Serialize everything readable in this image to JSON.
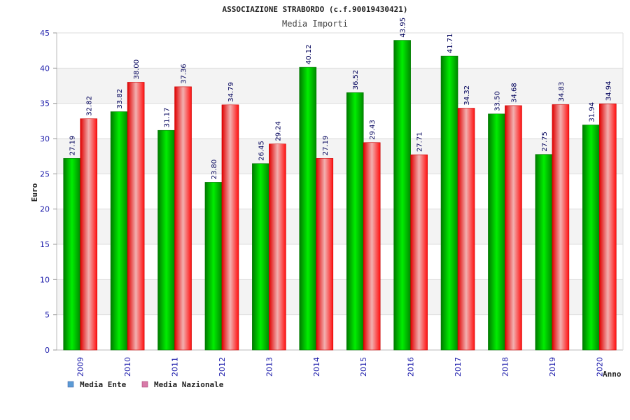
{
  "chart_data": {
    "type": "bar",
    "title": "ASSOCIAZIONE STRABORDO (c.f.90019430421)",
    "subtitle": "Media Importi",
    "xlabel": "Anno",
    "ylabel": "Euro",
    "ylim": [
      0,
      45
    ],
    "yticks": [
      0,
      5,
      10,
      15,
      20,
      25,
      30,
      35,
      40,
      45
    ],
    "grid": true,
    "legend_position": "bottom-left",
    "categories": [
      "2009",
      "2010",
      "2011",
      "2012",
      "2013",
      "2014",
      "2015",
      "2016",
      "2017",
      "2018",
      "2019",
      "2020"
    ],
    "series": [
      {
        "name": "Media Ente",
        "color": "#00cc00",
        "legend_color": "#5b9bd5",
        "values": [
          27.19,
          33.82,
          31.17,
          23.8,
          26.45,
          40.12,
          36.52,
          43.95,
          41.71,
          33.5,
          27.75,
          31.94
        ],
        "labels": [
          "27.19",
          "33.82",
          "31.17",
          "23.80",
          "26.45",
          "40.12",
          "36.52",
          "43.95",
          "41.71",
          "33.50",
          "27.75",
          "31.94"
        ]
      },
      {
        "name": "Media Nazionale",
        "color": "#ff2020",
        "legend_color": "#d87aa8",
        "values": [
          32.82,
          38.0,
          37.36,
          34.79,
          29.24,
          27.19,
          29.43,
          27.71,
          34.32,
          34.68,
          34.83,
          34.94
        ],
        "labels": [
          "32.82",
          "38.00",
          "37.36",
          "34.79",
          "29.24",
          "27.19",
          "29.43",
          "27.71",
          "34.32",
          "34.68",
          "34.83",
          "34.94"
        ]
      }
    ]
  }
}
